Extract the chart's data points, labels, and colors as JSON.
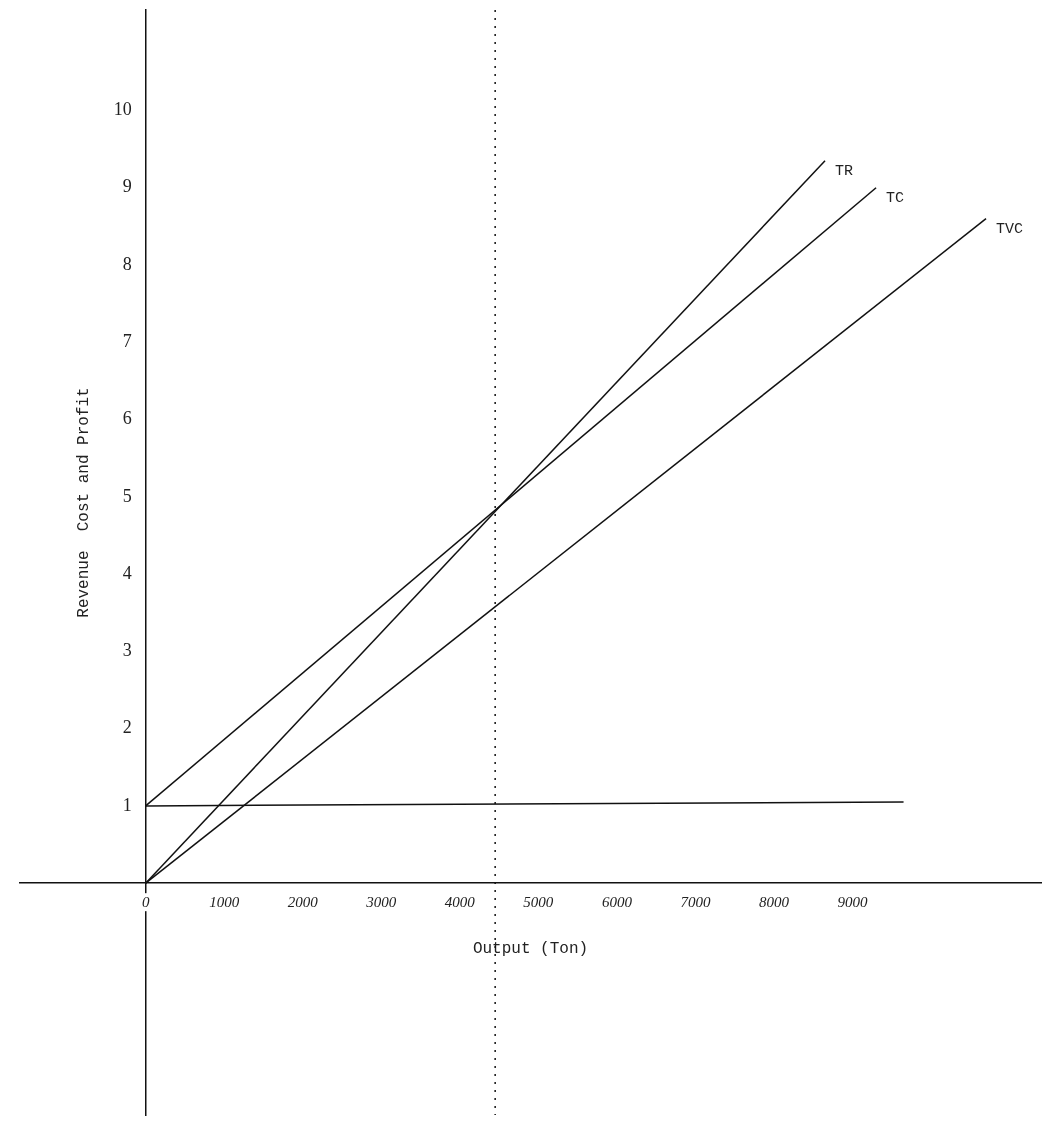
{
  "chart_data": {
    "type": "line",
    "xlabel": "Output (Ton)",
    "ylabel": "Revenue  Cost and Profit",
    "xlim": [
      -1600,
      11400
    ],
    "ylim": [
      -3,
      11.3
    ],
    "xticks": [
      {
        "value": 0,
        "label": "0"
      },
      1000,
      2000,
      3000,
      4000,
      5000,
      6000,
      7000,
      8000,
      9000
    ],
    "yticks": [
      1,
      2,
      3,
      4,
      5,
      6,
      7,
      8,
      9,
      10
    ],
    "grid": false,
    "legend": false,
    "marker": "none",
    "series": [
      {
        "name": "TR",
        "color": "#111111",
        "x": [
          0,
          8650
        ],
        "values": [
          0,
          9.35
        ]
      },
      {
        "name": "TC",
        "color": "#111111",
        "x": [
          0,
          9300
        ],
        "values": [
          1,
          9.0
        ]
      },
      {
        "name": "TVC",
        "color": "#111111",
        "x": [
          0,
          10700
        ],
        "values": [
          0,
          8.6
        ]
      },
      {
        "color": "#111111",
        "x": [
          0,
          9650
        ],
        "values": [
          1,
          1.05
        ]
      }
    ],
    "ref_lines": [
      {
        "axis": "x",
        "value": 4450,
        "line_style": "dotted",
        "color": "#111111"
      }
    ]
  }
}
